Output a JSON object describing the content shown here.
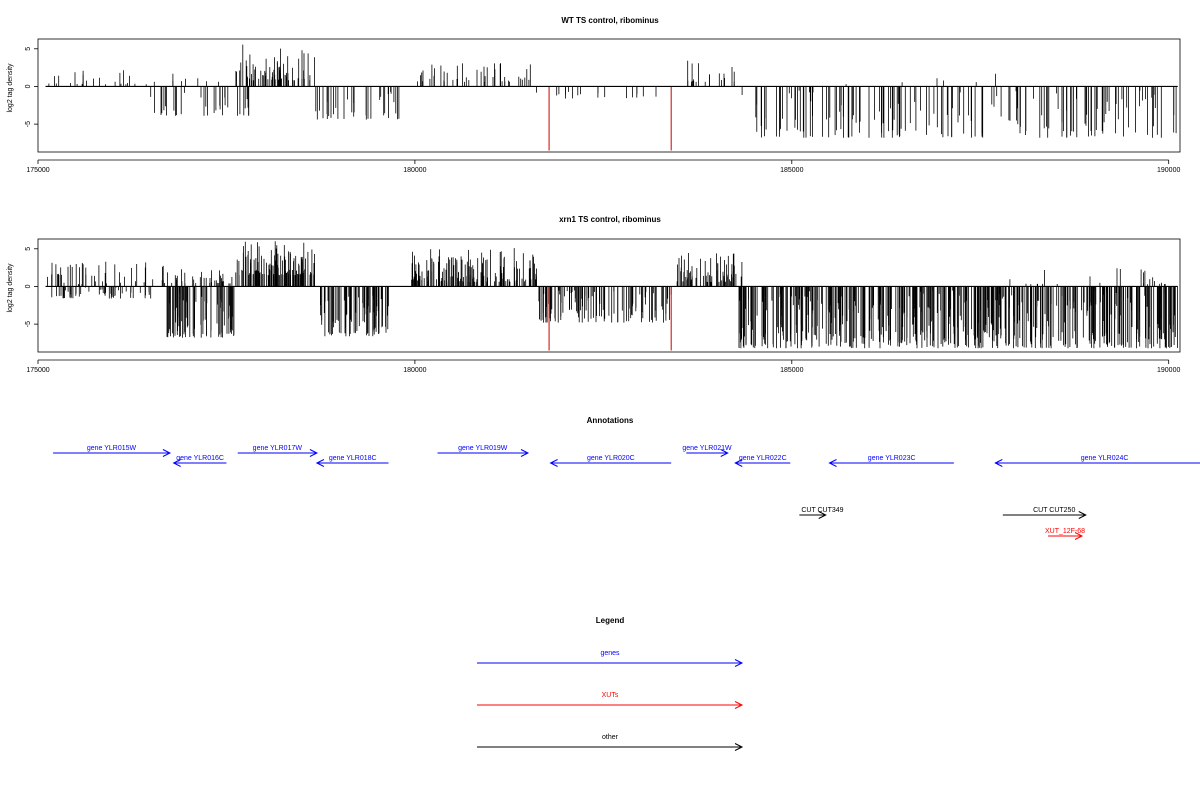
{
  "chart_data": [
    {
      "type": "bar",
      "title": "WT TS control, ribominus",
      "ylabel": "log2 tag density",
      "xlabel": "",
      "xlim": [
        175000,
        190150
      ],
      "ylim": [
        -8.7,
        6.3
      ],
      "xticks": [
        175000,
        180000,
        185000,
        190000
      ],
      "xtick_labels": [
        "175000",
        "180000",
        "185000",
        "190000"
      ],
      "yticks": [
        5,
        0,
        -5
      ],
      "ytick_labels": [
        "5",
        "0",
        "-5"
      ],
      "grid": false,
      "colors": {
        "default": "#000000",
        "highlight": "#cc0000"
      },
      "highlight": [
        {
          "x": 181780,
          "y": -8.5
        },
        {
          "x": 183400,
          "y": -8.5
        }
      ],
      "segments": [
        {
          "from": 175100,
          "to": 176480,
          "min": 0.3,
          "max": 2.4,
          "n": 24,
          "seed": 11
        },
        {
          "from": 176500,
          "to": 177700,
          "min": 0.6,
          "max": 1.8,
          "n": 8,
          "seed": 12
        },
        {
          "from": 176480,
          "to": 177820,
          "min": -3.9,
          "max": -0.6,
          "n": 32,
          "seed": 13
        },
        {
          "from": 177620,
          "to": 178680,
          "min": 0.8,
          "max": 5.6,
          "n": 75,
          "seed": 14
        },
        {
          "from": 178680,
          "to": 179800,
          "min": -4.4,
          "max": -0.6,
          "n": 34,
          "seed": 15
        },
        {
          "from": 180000,
          "to": 181600,
          "min": 0.6,
          "max": 3.2,
          "n": 45,
          "seed": 16
        },
        {
          "from": 181600,
          "to": 183400,
          "min": -1.6,
          "max": -0.3,
          "n": 18,
          "seed": 17
        },
        {
          "from": 183600,
          "to": 184260,
          "min": 0.6,
          "max": 3.6,
          "n": 20,
          "seed": 18
        },
        {
          "from": 184260,
          "to": 190120,
          "min": -6.8,
          "max": -0.4,
          "n": 170,
          "seed": 19
        },
        {
          "from": 185050,
          "to": 187800,
          "min": 0.3,
          "max": 1.8,
          "n": 6,
          "seed": 20
        }
      ]
    },
    {
      "type": "bar",
      "title": "xrn1 TS control, ribominus",
      "ylabel": "log2 tag density",
      "xlabel": "",
      "xlim": [
        175000,
        190150
      ],
      "ylim": [
        -8.7,
        6.3
      ],
      "xticks": [
        175000,
        180000,
        185000,
        190000
      ],
      "xtick_labels": [
        "175000",
        "180000",
        "185000",
        "190000"
      ],
      "yticks": [
        5,
        0,
        -5
      ],
      "ytick_labels": [
        "5",
        "0",
        "-5"
      ],
      "grid": false,
      "colors": {
        "default": "#000000",
        "highlight": "#cc0000"
      },
      "highlight": [
        {
          "x": 181780,
          "y": -8.5
        },
        {
          "x": 183400,
          "y": -8.5
        }
      ],
      "segments": [
        {
          "from": 175120,
          "to": 176500,
          "min": -1.6,
          "max": 3.3,
          "n": 95,
          "seed": 31
        },
        {
          "from": 176500,
          "to": 177600,
          "min": 0.4,
          "max": 2.8,
          "n": 40,
          "seed": 32
        },
        {
          "from": 176700,
          "to": 177650,
          "min": -6.8,
          "max": -0.8,
          "n": 80,
          "seed": 33
        },
        {
          "from": 177620,
          "to": 178670,
          "min": 1.5,
          "max": 6.0,
          "n": 120,
          "seed": 34
        },
        {
          "from": 178680,
          "to": 179650,
          "min": -6.6,
          "max": -0.8,
          "n": 75,
          "seed": 35
        },
        {
          "from": 179950,
          "to": 181620,
          "min": 0.6,
          "max": 5.2,
          "n": 150,
          "seed": 36
        },
        {
          "from": 181620,
          "to": 183450,
          "min": -4.8,
          "max": -0.5,
          "n": 110,
          "seed": 37
        },
        {
          "from": 183450,
          "to": 184350,
          "min": 0.6,
          "max": 4.6,
          "n": 70,
          "seed": 38
        },
        {
          "from": 184300,
          "to": 190120,
          "min": -8.2,
          "max": -0.5,
          "n": 520,
          "seed": 39
        },
        {
          "from": 187800,
          "to": 190000,
          "min": 0.3,
          "max": 2.6,
          "n": 24,
          "seed": 40
        }
      ]
    }
  ],
  "annotations": {
    "title": "Annotations",
    "genes": [
      {
        "label": "gene YLR015W",
        "start": 175200,
        "end": 176750,
        "row": 0,
        "dir": "right"
      },
      {
        "label": "gene YLR016C",
        "start": 176800,
        "end": 177500,
        "row": 1,
        "dir": "left"
      },
      {
        "label": "gene YLR017W",
        "start": 177650,
        "end": 178700,
        "row": 0,
        "dir": "right"
      },
      {
        "label": "gene YLR018C",
        "start": 178700,
        "end": 179650,
        "row": 1,
        "dir": "left"
      },
      {
        "label": "gene YLR019W",
        "start": 180300,
        "end": 181500,
        "row": 0,
        "dir": "right"
      },
      {
        "label": "gene YLR020C",
        "start": 181800,
        "end": 183400,
        "row": 1,
        "dir": "left"
      },
      {
        "label": "gene YLR021W",
        "start": 183600,
        "end": 184150,
        "row": 0,
        "dir": "right"
      },
      {
        "label": "gene YLR022C",
        "start": 184250,
        "end": 184980,
        "row": 1,
        "dir": "left"
      },
      {
        "label": "gene YLR023C",
        "start": 185500,
        "end": 187150,
        "row": 1,
        "dir": "left"
      },
      {
        "label": "gene YLR024C",
        "start": 187700,
        "end": 190600,
        "row": 1,
        "dir": "left"
      }
    ],
    "other": [
      {
        "label": "CUT",
        "extra": "CUT349",
        "start": 185100,
        "end": 185450,
        "row": 0
      },
      {
        "label": "CUT",
        "extra": "CUT250",
        "start": 187800,
        "end": 188900,
        "row": 0
      }
    ],
    "xuts": [
      {
        "label": "XUT_12F-68",
        "start": 188400,
        "end": 188850,
        "row": 1
      }
    ]
  },
  "legend": {
    "title": "Legend",
    "items": [
      {
        "label": "genes",
        "color": "#0000ff"
      },
      {
        "label": "XUTs",
        "color": "#ff0000"
      },
      {
        "label": "other",
        "color": "#000000"
      }
    ]
  },
  "colors": {
    "gene": "#0000ff",
    "xut": "#ff0000",
    "other": "#000000"
  }
}
